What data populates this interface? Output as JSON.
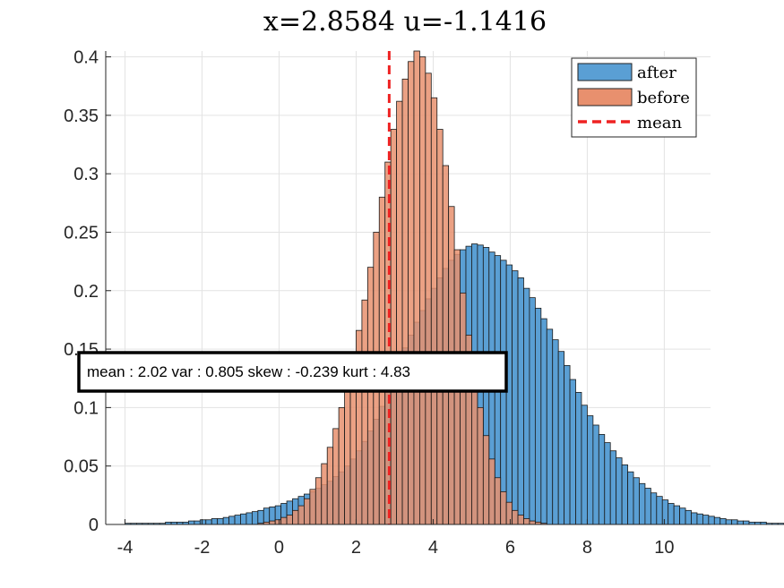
{
  "chart_data": {
    "type": "histogram",
    "title": "x=2.8584 u=-1.1416",
    "xlabel": "",
    "ylabel": "",
    "xlim": [
      -4.5,
      11.2
    ],
    "ylim": [
      0,
      0.405
    ],
    "x_ticks": [
      -4,
      -2,
      0,
      2,
      4,
      6,
      8,
      10
    ],
    "y_ticks": [
      0,
      0.05,
      0.1,
      0.15,
      0.2,
      0.25,
      0.3,
      0.35,
      0.4
    ],
    "y_tick_labels": [
      "0",
      "0.05",
      "0.1",
      "0.15",
      "0.2",
      "0.25",
      "0.3",
      "0.35",
      "0.4"
    ],
    "grid": true,
    "legend_position": "top-right",
    "bin_width": 0.15,
    "series": [
      {
        "name": "after",
        "color": "#5a9fd4",
        "start": -4.0,
        "values": [
          0.001,
          0.001,
          0.001,
          0.001,
          0.001,
          0.001,
          0.001,
          0.002,
          0.002,
          0.002,
          0.002,
          0.003,
          0.003,
          0.004,
          0.004,
          0.005,
          0.005,
          0.006,
          0.007,
          0.008,
          0.009,
          0.01,
          0.011,
          0.012,
          0.014,
          0.015,
          0.016,
          0.018,
          0.02,
          0.022,
          0.024,
          0.026,
          0.028,
          0.031,
          0.034,
          0.037,
          0.041,
          0.045,
          0.05,
          0.056,
          0.063,
          0.071,
          0.08,
          0.09,
          0.101,
          0.113,
          0.126,
          0.139,
          0.151,
          0.162,
          0.173,
          0.183,
          0.193,
          0.202,
          0.211,
          0.219,
          0.226,
          0.231,
          0.235,
          0.238,
          0.24,
          0.239,
          0.237,
          0.233,
          0.23,
          0.226,
          0.222,
          0.217,
          0.211,
          0.202,
          0.194,
          0.185,
          0.176,
          0.167,
          0.158,
          0.148,
          0.136,
          0.124,
          0.113,
          0.102,
          0.093,
          0.085,
          0.077,
          0.07,
          0.063,
          0.057,
          0.051,
          0.045,
          0.04,
          0.035,
          0.031,
          0.027,
          0.024,
          0.021,
          0.018,
          0.016,
          0.014,
          0.012,
          0.01,
          0.009,
          0.008,
          0.007,
          0.006,
          0.005,
          0.004,
          0.004,
          0.003,
          0.003,
          0.002,
          0.002,
          0.002,
          0.001,
          0.001,
          0.001
        ]
      },
      {
        "name": "before",
        "color": "#e8906e",
        "start": -0.55,
        "values": [
          0.001,
          0.002,
          0.003,
          0.004,
          0.006,
          0.008,
          0.012,
          0.016,
          0.022,
          0.03,
          0.04,
          0.052,
          0.066,
          0.082,
          0.1,
          0.12,
          0.142,
          0.166,
          0.192,
          0.22,
          0.25,
          0.28,
          0.31,
          0.338,
          0.362,
          0.381,
          0.396,
          0.405,
          0.4,
          0.386,
          0.365,
          0.338,
          0.307,
          0.272,
          0.235,
          0.198,
          0.162,
          0.129,
          0.1,
          0.076,
          0.056,
          0.04,
          0.028,
          0.019,
          0.012,
          0.008,
          0.005,
          0.003,
          0.002,
          0.001
        ]
      }
    ],
    "mean_line": {
      "name": "mean",
      "x": 2.8584,
      "color": "#ee2222",
      "style": "dashed"
    },
    "annotation": "mean : 2.02 var : 0.805 skew : -0.239 kurt : 4.83"
  }
}
